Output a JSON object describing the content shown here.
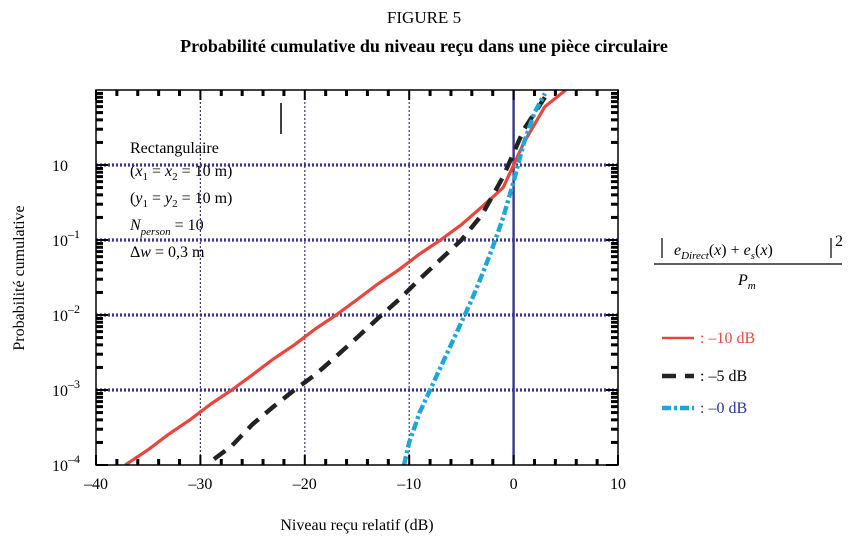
{
  "figure_label": "FIGURE 5",
  "chart_data": {
    "type": "line",
    "title": "Probabilité cumulative du niveau reçu dans une pièce circulaire",
    "xlabel": "Niveau reçu relatif (dB)",
    "ylabel": "Probabilité cumulative",
    "xlim": [
      -40,
      10
    ],
    "ylim_log10": [
      -4,
      1
    ],
    "yscale": "log",
    "grid": true,
    "x_ticks": [
      "–40",
      "–30",
      "–20",
      "–10",
      "0",
      "10"
    ],
    "y_ticks": [
      {
        "base": "10",
        "exp": "–4"
      },
      {
        "base": "10",
        "exp": "–3"
      },
      {
        "base": "10",
        "exp": "–2"
      },
      {
        "base": "10",
        "exp": "–1"
      },
      {
        "base": "10",
        "exp": ""
      }
    ],
    "annotation": {
      "line1": "Rectangulaire",
      "line2": "(x1 = x2 = 10 m)",
      "line3": "(y1 = y2 = 10 m)",
      "line4": "Nperson = 10",
      "line5": "Δw = 0,3 m"
    },
    "formula": {
      "numerator": "e_Direct(x) + e_s(x)",
      "exponent": "2",
      "denominator": "P_m"
    },
    "series": [
      {
        "name": ": –10 dB",
        "color": "#e8463c",
        "style": "solid",
        "x": [
          -37.2,
          -35,
          -33,
          -31,
          -29,
          -27,
          -25,
          -23,
          -21,
          -19,
          -17,
          -15,
          -13,
          -11,
          -9,
          -7,
          -5,
          -3,
          -1,
          1,
          3,
          5
        ],
        "y": [
          0.0001,
          0.00016,
          0.00026,
          0.0004,
          0.00065,
          0.001,
          0.0016,
          0.0026,
          0.004,
          0.0065,
          0.01,
          0.016,
          0.026,
          0.04,
          0.065,
          0.1,
          0.16,
          0.28,
          0.5,
          2,
          6,
          10
        ]
      },
      {
        "name": ": –5 dB",
        "color": "#222222",
        "style": "dash",
        "x": [
          -28.7,
          -27,
          -25,
          -23,
          -21,
          -19,
          -17,
          -15,
          -13,
          -11,
          -9,
          -7,
          -5,
          -3,
          -1,
          1,
          3
        ],
        "y": [
          0.00012,
          0.00018,
          0.00035,
          0.0006,
          0.001,
          0.0016,
          0.0028,
          0.005,
          0.009,
          0.016,
          0.03,
          0.055,
          0.1,
          0.22,
          0.7,
          3,
          8
        ]
      },
      {
        "name": ": –0 dB",
        "color": "#1ea6d9",
        "style": "dotdash",
        "x": [
          -10.5,
          -10,
          -9,
          -8,
          -7,
          -6,
          -5,
          -4,
          -3,
          -2,
          -1,
          0,
          1,
          2,
          3
        ],
        "y": [
          0.0001,
          0.0002,
          0.0005,
          0.001,
          0.002,
          0.004,
          0.008,
          0.016,
          0.035,
          0.08,
          0.2,
          0.6,
          2,
          5,
          9
        ]
      }
    ]
  }
}
